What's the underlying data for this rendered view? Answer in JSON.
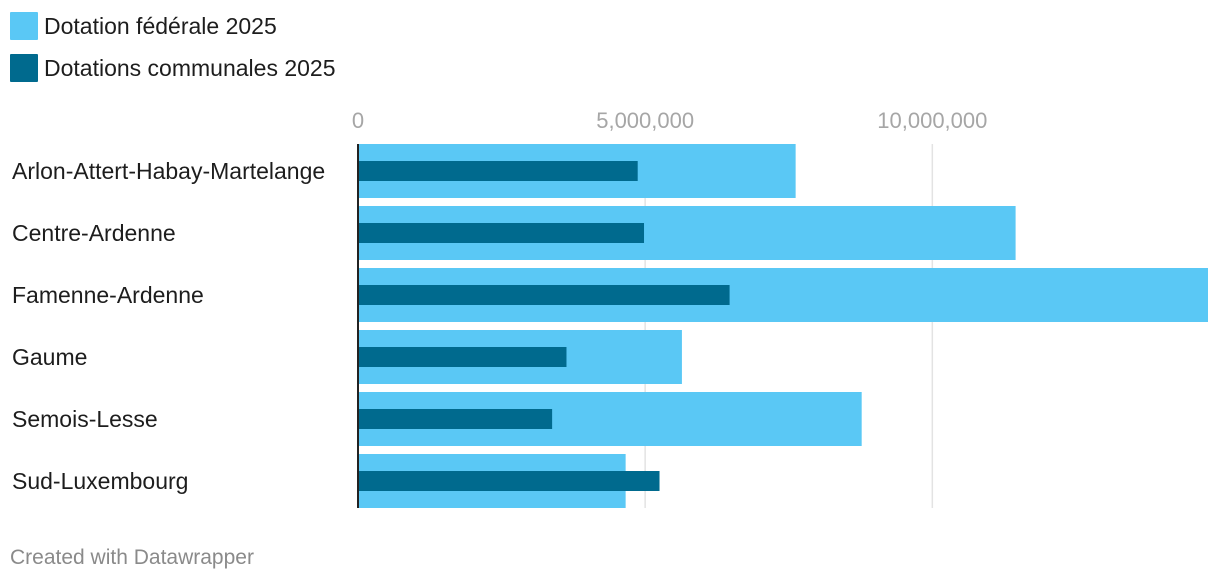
{
  "legend": {
    "items": [
      {
        "label": "Dotation fédérale 2025",
        "color": "#5ac8f5"
      },
      {
        "label": "Dotations communales 2025",
        "color": "#006a8e"
      }
    ]
  },
  "footer": {
    "text": "Created with Datawrapper"
  },
  "chart_data": {
    "type": "bar",
    "orientation": "horizontal",
    "title": "",
    "xlabel": "",
    "ylabel": "",
    "xlim": [
      0,
      14800000
    ],
    "ticks": [
      0,
      5000000,
      10000000
    ],
    "tick_labels": [
      "0",
      "5,000,000",
      "10,000,000"
    ],
    "categories": [
      "Arlon-Attert-Habay-Martelange",
      "Centre-Ardenne",
      "Famenne-Ardenne",
      "Gaume",
      "Semois-Lesse",
      "Sud-Luxembourg"
    ],
    "series": [
      {
        "name": "Dotation fédérale 2025",
        "color": "#5ac8f5",
        "values": [
          7620000,
          11450000,
          14800000,
          5640000,
          8770000,
          4660000
        ]
      },
      {
        "name": "Dotations communales 2025",
        "color": "#006a8e",
        "values": [
          4870000,
          4980000,
          6470000,
          3630000,
          3380000,
          5250000
        ]
      }
    ],
    "grid": true,
    "legend_position": "top-left"
  }
}
